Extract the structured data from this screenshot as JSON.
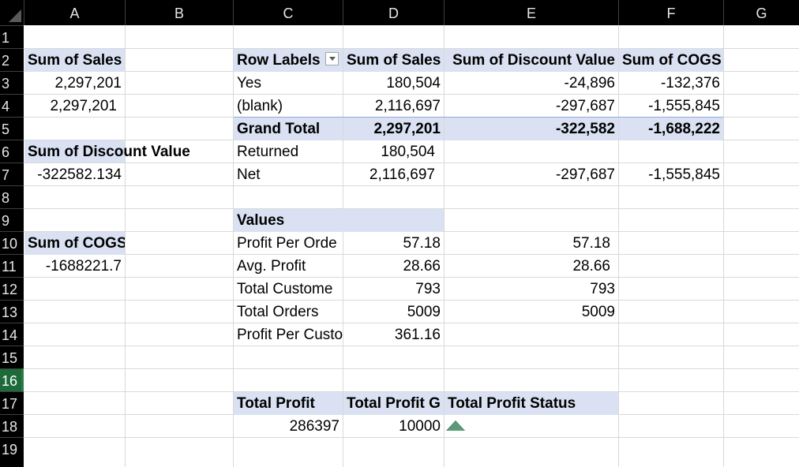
{
  "columns": [
    "A",
    "B",
    "C",
    "D",
    "E",
    "F",
    "G"
  ],
  "rows": [
    "1",
    "2",
    "3",
    "4",
    "5",
    "6",
    "7",
    "8",
    "9",
    "10",
    "11",
    "12",
    "13",
    "14",
    "15",
    "16",
    "17",
    "18",
    "19"
  ],
  "selected_row": "16",
  "left_block": {
    "sum_sales_label": "Sum of Sales",
    "sum_sales_r3": "2,297,201",
    "sum_sales_r4": "2,297,201",
    "discount_label": "Sum of Discount Value",
    "discount_value": "-322582.134",
    "cogs_label": "Sum of COGS",
    "cogs_value": "-1688221.7"
  },
  "pivot": {
    "headers": [
      "Row Labels",
      "Sum of Sales",
      "Sum of Discount Value",
      "Sum of COGS"
    ],
    "rows": [
      {
        "label": "Yes",
        "sales": "180,504",
        "discount": "-24,896",
        "cogs": "-132,376"
      },
      {
        "label": "(blank)",
        "sales": "2,116,697",
        "discount": "-297,687",
        "cogs": "-1,555,845"
      }
    ],
    "grand_total": {
      "label": "Grand Total",
      "sales": "2,297,201",
      "discount": "-322,582",
      "cogs": "-1,688,222"
    }
  },
  "summary": {
    "returned_label": "Returned",
    "returned_value": "180,504",
    "net_label": "Net",
    "net_sales": "2,116,697",
    "net_discount": "-297,687",
    "net_cogs": "-1,555,845"
  },
  "values_block": {
    "header": "Values",
    "rows": [
      {
        "label": "Profit Per Orde",
        "d": "57.18",
        "e": "57.18"
      },
      {
        "label": "Avg. Profit",
        "d": "28.66",
        "e": "28.66"
      },
      {
        "label": "Total Custome",
        "d": "793",
        "e": "793"
      },
      {
        "label": "Total Orders",
        "d": "5009",
        "e": "5009"
      },
      {
        "label": "Profit Per Custo",
        "d": "361.16",
        "e": ""
      }
    ]
  },
  "profit_block": {
    "headers": [
      "Total Profit",
      "Total Profit G",
      "Total Profit Status"
    ],
    "total_profit": "286397",
    "total_profit_goal": "10000",
    "status_icon": "up-triangle-icon",
    "status_color": "#5b9a79"
  },
  "colors": {
    "header_bg": "#000000",
    "header_text": "#e6e6e6",
    "pivot_fill": "#d9e1f2",
    "selected_row": "#1d6b3a"
  }
}
